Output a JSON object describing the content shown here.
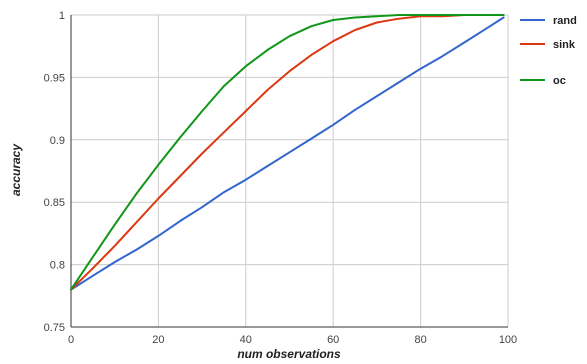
{
  "chart_data": {
    "type": "line",
    "title": "",
    "xlabel": "num observations",
    "ylabel": "accuracy",
    "xlim": [
      0,
      100
    ],
    "ylim": [
      0.75,
      1
    ],
    "x_ticks": [
      "0",
      "20",
      "40",
      "60",
      "80",
      "100"
    ],
    "y_ticks": [
      "0.75",
      "0.8",
      "0.85",
      "0.9",
      "0.95",
      "1"
    ],
    "grid": true,
    "legend_position": "right",
    "x": [
      0,
      5,
      10,
      15,
      20,
      25,
      30,
      35,
      40,
      45,
      50,
      55,
      60,
      65,
      70,
      75,
      80,
      85,
      90,
      95,
      99
    ],
    "series": [
      {
        "name": "rand",
        "color": "#3366cc",
        "values": [
          0.78,
          0.791,
          0.802,
          0.812,
          0.823,
          0.835,
          0.846,
          0.858,
          0.868,
          0.879,
          0.89,
          0.901,
          0.912,
          0.924,
          0.935,
          0.946,
          0.957,
          0.967,
          0.978,
          0.989,
          0.998
        ]
      },
      {
        "name": "sink",
        "color": "#dc3912",
        "values": [
          0.78,
          0.797,
          0.815,
          0.834,
          0.853,
          0.871,
          0.889,
          0.906,
          0.923,
          0.94,
          0.955,
          0.968,
          0.979,
          0.988,
          0.994,
          0.997,
          0.999,
          0.999,
          1.0,
          1.0,
          1.0
        ]
      },
      {
        "name": "oc",
        "color": "#109618",
        "values": [
          0.78,
          0.806,
          0.832,
          0.857,
          0.88,
          0.902,
          0.923,
          0.943,
          0.959,
          0.972,
          0.983,
          0.991,
          0.996,
          0.998,
          0.999,
          1.0,
          1.0,
          1.0,
          1.0,
          1.0,
          1.0
        ]
      }
    ]
  }
}
